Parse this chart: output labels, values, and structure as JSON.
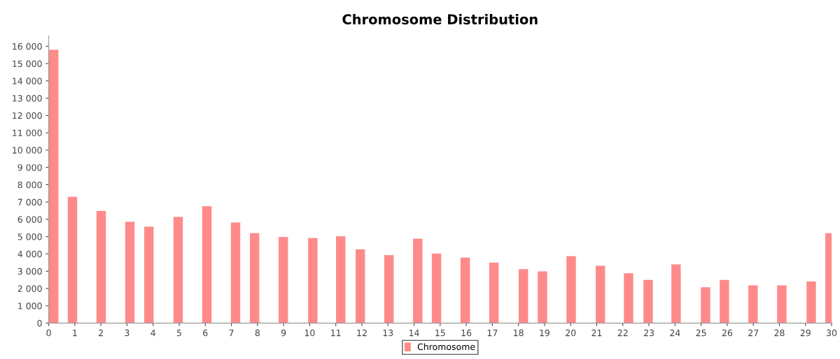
{
  "chart_data": {
    "type": "bar",
    "title": "Chromosome Distribution",
    "x": [
      0.19,
      0.91,
      2.01,
      3.11,
      3.84,
      4.96,
      6.06,
      7.16,
      7.89,
      8.99,
      10.12,
      11.19,
      11.94,
      13.04,
      14.14,
      14.86,
      15.96,
      17.06,
      18.19,
      18.92,
      20.02,
      21.14,
      22.22,
      22.97,
      24.04,
      25.17,
      25.89,
      26.99,
      28.09,
      29.22,
      29.94
    ],
    "series": [
      {
        "name": "Chromosome",
        "color": "#ff8a8a",
        "values": [
          15800,
          7300,
          6480,
          5860,
          5580,
          6140,
          6760,
          5820,
          5200,
          4980,
          4920,
          5020,
          4260,
          3930,
          4880,
          4020,
          3790,
          3500,
          3120,
          2990,
          3870,
          3310,
          2880,
          2500,
          3400,
          2070,
          2500,
          2180,
          2180,
          2410,
          5200
        ]
      }
    ],
    "xlim": [
      0,
      30
    ],
    "xticks": [
      0,
      1,
      2,
      3,
      4,
      5,
      6,
      7,
      8,
      9,
      10,
      11,
      12,
      13,
      14,
      15,
      16,
      17,
      18,
      19,
      20,
      21,
      22,
      23,
      24,
      25,
      26,
      27,
      28,
      29,
      30
    ],
    "ylim": [
      0,
      16600
    ],
    "yticks": [
      0,
      {
        "value": 1000,
        "label": "1 000"
      },
      {
        "value": 2000,
        "label": "2 000"
      },
      {
        "value": 3000,
        "label": "3 000"
      },
      {
        "value": 4000,
        "label": "4 000"
      },
      {
        "value": 5000,
        "label": "5 000"
      },
      {
        "value": 6000,
        "label": "6 000"
      },
      {
        "value": 7000,
        "label": "7 000"
      },
      {
        "value": 8000,
        "label": "8 000"
      },
      {
        "value": 9000,
        "label": "9 000"
      },
      {
        "value": 10000,
        "label": "10 000"
      },
      {
        "value": 11000,
        "label": "11 000"
      },
      {
        "value": 12000,
        "label": "12 000"
      },
      {
        "value": 13000,
        "label": "13 000"
      },
      {
        "value": 14000,
        "label": "14 000"
      },
      {
        "value": 15000,
        "label": "15 000"
      },
      {
        "value": 16000,
        "label": "16 000"
      }
    ],
    "grid": false,
    "legend": "bottom"
  }
}
